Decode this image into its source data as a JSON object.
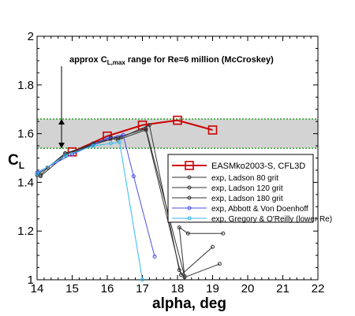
{
  "chart_data": {
    "type": "line",
    "xlabel": "alpha, deg",
    "ylabel": "C",
    "ylabel_sub": "L",
    "xlim": [
      14,
      22
    ],
    "ylim": [
      1,
      2
    ],
    "xticks": [
      14,
      15,
      16,
      17,
      18,
      19,
      20,
      21,
      22
    ],
    "yticks": [
      1,
      1.2,
      1.4,
      1.6,
      1.8,
      2
    ],
    "ytick_labels": [
      "1",
      "1.2",
      "1.4",
      "1.6",
      "1.8",
      "2"
    ],
    "band": {
      "ymin": 1.54,
      "ymax": 1.66,
      "fill": "#d3d3d3",
      "edge_color": "#2ca02c"
    },
    "annotation": {
      "pre": "approx C",
      "sub": "L,max",
      "post": " range for Re=6 million (McCroskey)"
    },
    "legend_position": "right-middle",
    "series": [
      {
        "name": "EASMko2003-S, CFL3D",
        "color": "#cc0000",
        "marker": "square",
        "points": [
          [
            15,
            1.525
          ],
          [
            16,
            1.59
          ],
          [
            17,
            1.635
          ],
          [
            18,
            1.655
          ],
          [
            19,
            1.615
          ]
        ]
      },
      {
        "name": "exp, Ladson 80 grit",
        "color": "#333333",
        "marker": "circle",
        "points": [
          [
            14.1,
            1.43
          ],
          [
            14.3,
            1.46
          ],
          [
            14.8,
            1.52
          ],
          [
            15.6,
            1.555
          ],
          [
            16.3,
            1.585
          ],
          [
            17.1,
            1.62
          ],
          [
            18.2,
            1.015
          ],
          [
            18.05,
            1.215
          ],
          [
            18.3,
            1.19
          ],
          [
            19.3,
            1.19
          ]
        ]
      },
      {
        "name": "exp, Ladson 120 grit",
        "color": "#333333",
        "marker": "circle",
        "points": [
          [
            14.1,
            1.425
          ],
          [
            14.8,
            1.51
          ],
          [
            15.6,
            1.555
          ],
          [
            16.1,
            1.58
          ],
          [
            16.3,
            1.575
          ],
          [
            17.1,
            1.615
          ],
          [
            18.1,
            1.02
          ],
          [
            19.0,
            1.135
          ]
        ]
      },
      {
        "name": "exp, Ladson 180 grit",
        "color": "#333333",
        "marker": "circle",
        "points": [
          [
            14.0,
            1.43
          ],
          [
            14.8,
            1.515
          ],
          [
            15.6,
            1.56
          ],
          [
            16.1,
            1.585
          ],
          [
            16.4,
            1.585
          ],
          [
            17.2,
            1.635
          ],
          [
            18.05,
            1.04
          ],
          [
            18.2,
            1.01
          ],
          [
            19.2,
            1.065
          ]
        ]
      },
      {
        "name": "exp, Abbott & Von Doenhoff",
        "color": "#4b50e6",
        "marker": "circle",
        "points": [
          [
            14.0,
            1.44
          ],
          [
            15.0,
            1.515
          ],
          [
            16.0,
            1.58
          ],
          [
            16.45,
            1.595
          ],
          [
            16.75,
            1.425
          ],
          [
            17.35,
            1.095
          ]
        ]
      },
      {
        "name": "exp, Gregory & O'Reilly (lower Re)",
        "color": "#33bbee",
        "marker": "circle",
        "points": [
          [
            14.0,
            1.435
          ],
          [
            14.8,
            1.51
          ],
          [
            15.6,
            1.55
          ],
          [
            16.1,
            1.56
          ],
          [
            16.35,
            1.565
          ],
          [
            17.0,
            1.0
          ]
        ]
      }
    ]
  }
}
